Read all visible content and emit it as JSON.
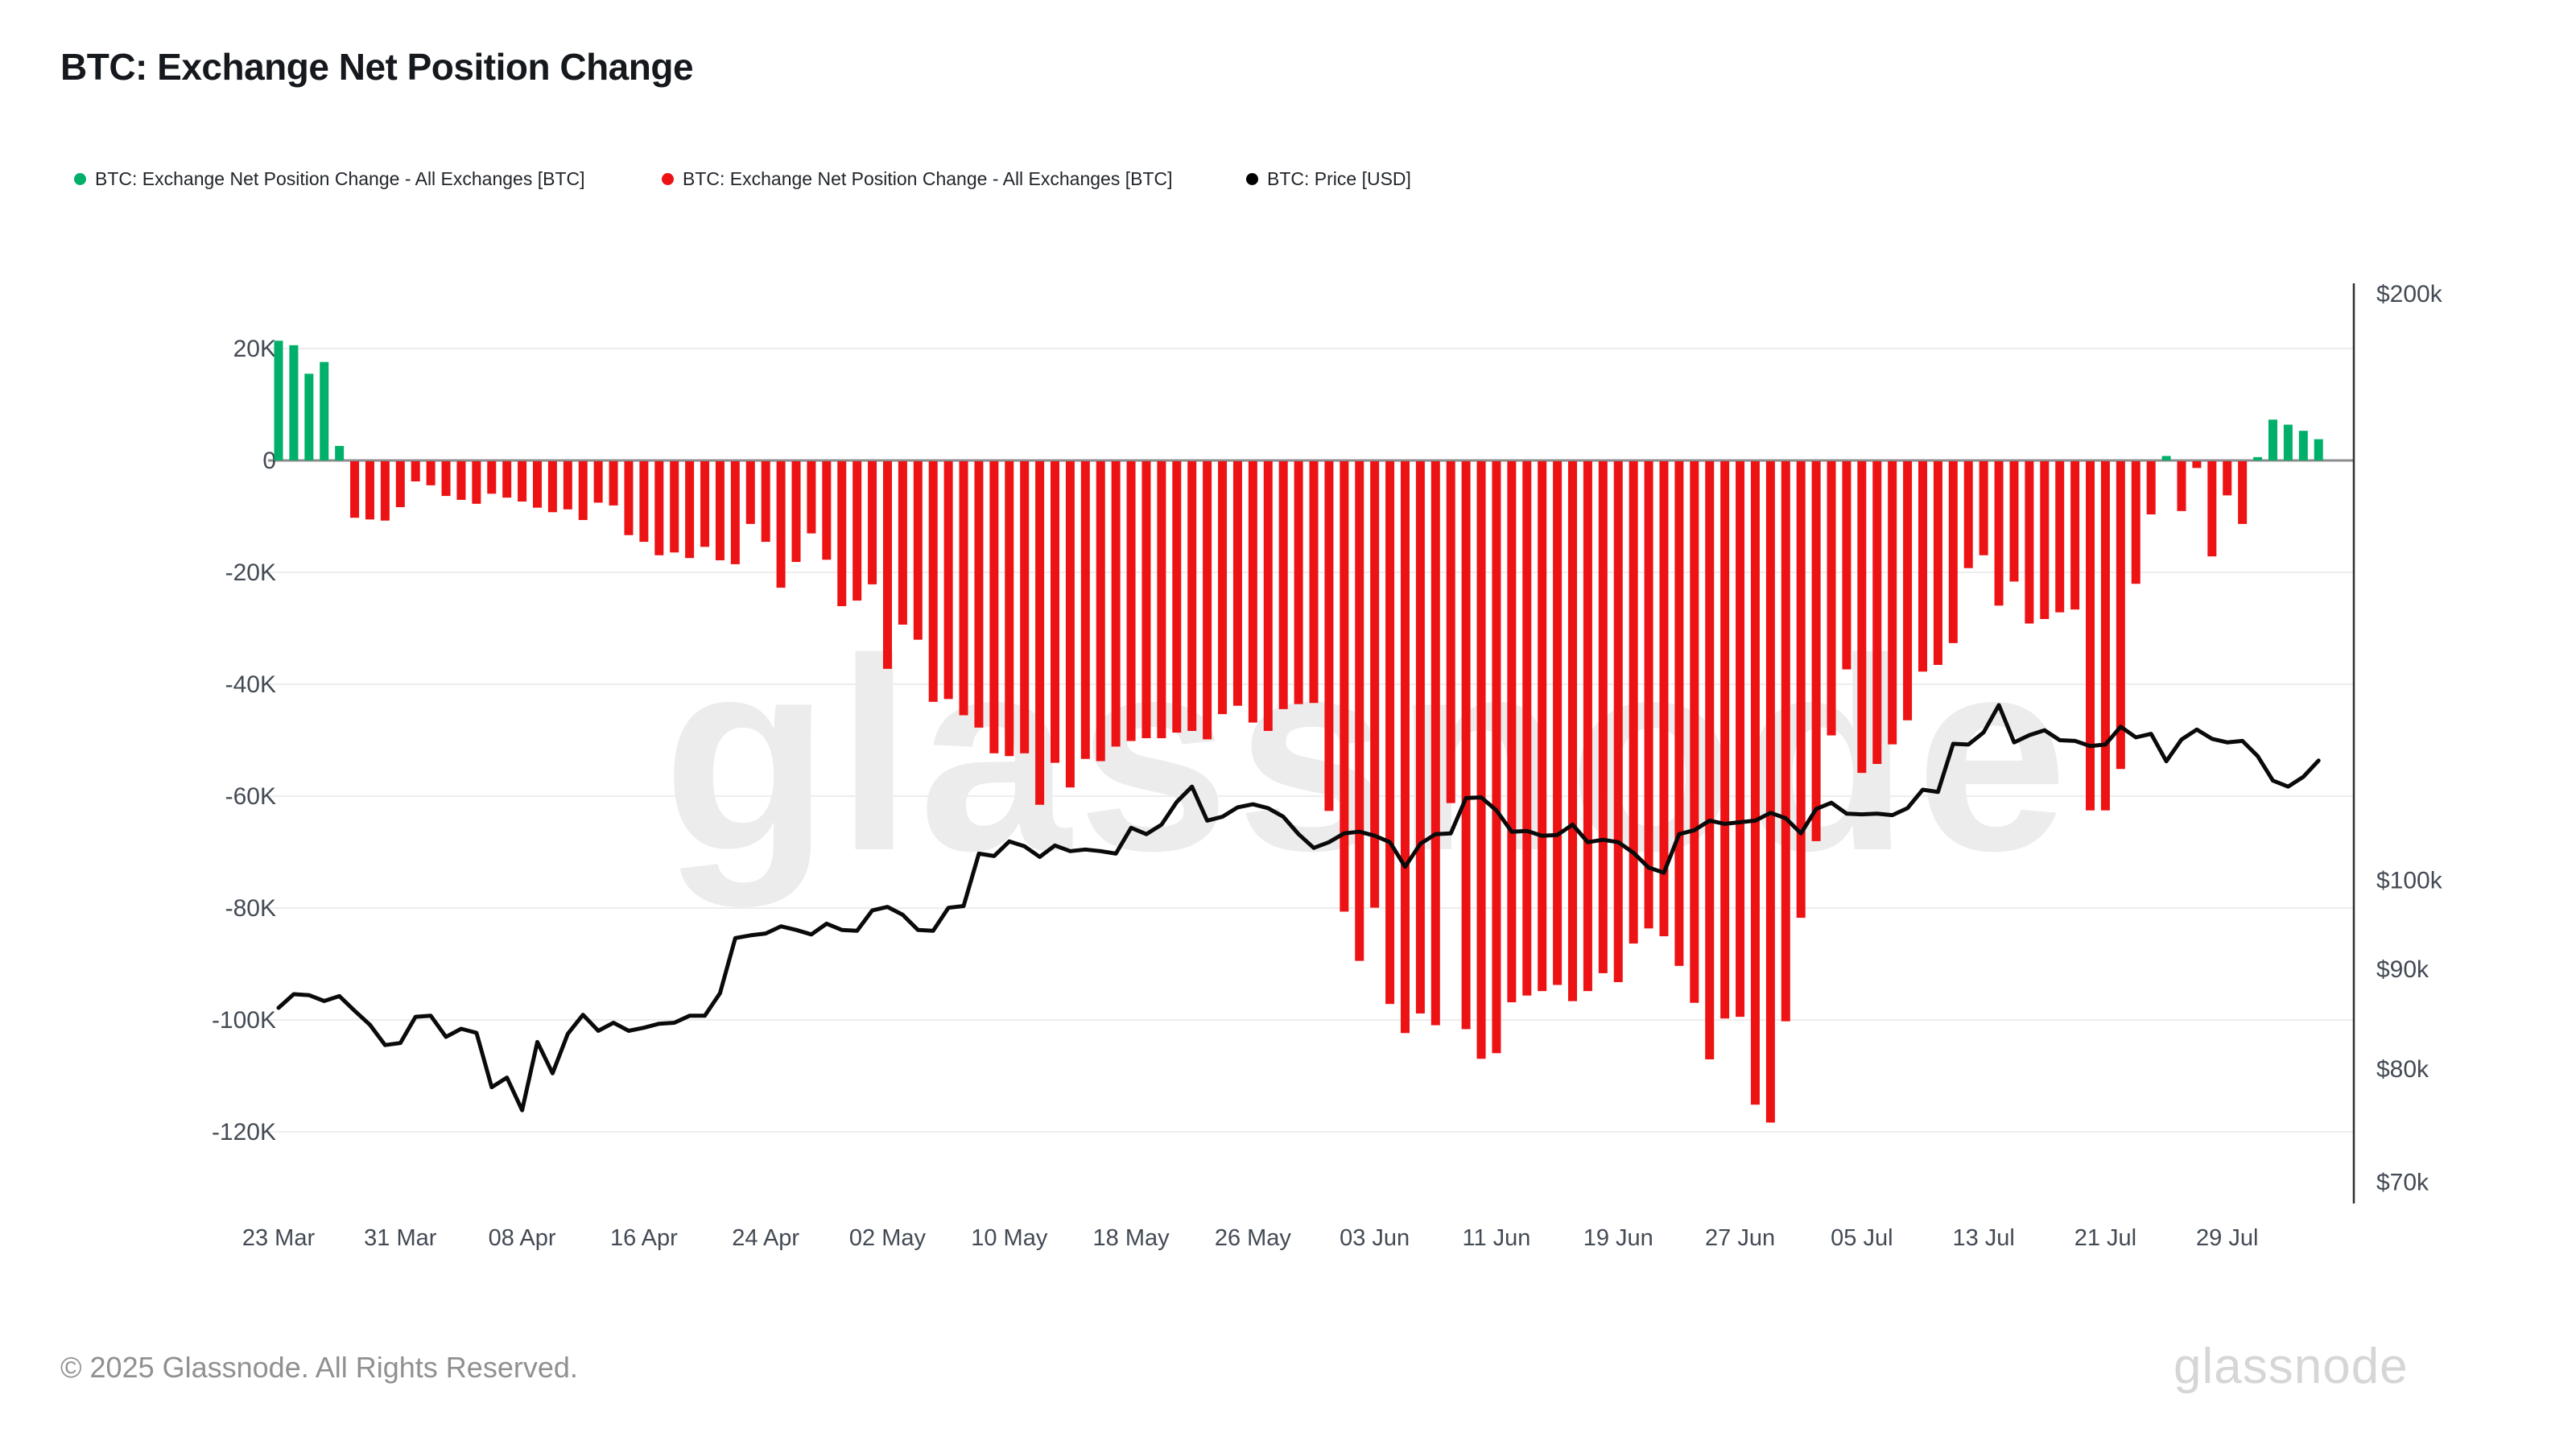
{
  "header": {
    "title": "BTC: Exchange Net Position Change"
  },
  "legend": [
    {
      "label": "BTC: Exchange Net Position Change - All Exchanges [BTC]",
      "color": "#00b06a"
    },
    {
      "label": "BTC: Exchange Net Position Change - All Exchanges [BTC]",
      "color": "#ed1214"
    },
    {
      "label": "BTC: Price [USD]",
      "color": "#000000"
    }
  ],
  "watermark": "glassnode",
  "footer": {
    "copyright": "© 2025 Glassnode. All Rights Reserved.",
    "brand": "glassnode"
  },
  "chart_data": {
    "type": "bar+line",
    "title": "BTC: Exchange Net Position Change",
    "grid": true,
    "left_axis": {
      "unit": "BTC (thousands)",
      "tick_labels": [
        "20K",
        "0",
        "-20K",
        "-40K",
        "-60K",
        "-80K",
        "-100K",
        "-120K"
      ],
      "tick_values": [
        20,
        0,
        -20,
        -40,
        -60,
        -80,
        -100,
        -120
      ]
    },
    "right_axis": {
      "unit": "USD",
      "scale": "log",
      "tick_labels": [
        "$200k",
        "$100k",
        "$90k",
        "$80k",
        "$70k"
      ],
      "tick_values_usd_thousands": [
        200,
        100,
        90,
        80,
        70
      ]
    },
    "x_ticks": {
      "labels": [
        "23 Mar",
        "31 Mar",
        "08 Apr",
        "16 Apr",
        "24 Apr",
        "02 May",
        "10 May",
        "18 May",
        "26 May",
        "03 Jun",
        "11 Jun",
        "19 Jun",
        "27 Jun",
        "05 Jul",
        "13 Jul",
        "21 Jul",
        "29 Jul"
      ],
      "day_indices": [
        0,
        8,
        16,
        24,
        32,
        40,
        48,
        56,
        64,
        72,
        80,
        88,
        96,
        104,
        112,
        120,
        128
      ]
    },
    "categories": [
      "23 Mar",
      "24 Mar",
      "25 Mar",
      "26 Mar",
      "27 Mar",
      "28 Mar",
      "29 Mar",
      "30 Mar",
      "31 Mar",
      "01 Apr",
      "02 Apr",
      "03 Apr",
      "04 Apr",
      "05 Apr",
      "06 Apr",
      "07 Apr",
      "08 Apr",
      "09 Apr",
      "10 Apr",
      "11 Apr",
      "12 Apr",
      "13 Apr",
      "14 Apr",
      "15 Apr",
      "16 Apr",
      "17 Apr",
      "18 Apr",
      "19 Apr",
      "20 Apr",
      "21 Apr",
      "22 Apr",
      "23 Apr",
      "24 Apr",
      "25 Apr",
      "26 Apr",
      "27 Apr",
      "28 Apr",
      "29 Apr",
      "30 Apr",
      "01 May",
      "02 May",
      "03 May",
      "04 May",
      "05 May",
      "06 May",
      "07 May",
      "08 May",
      "09 May",
      "10 May",
      "11 May",
      "12 May",
      "13 May",
      "14 May",
      "15 May",
      "16 May",
      "17 May",
      "18 May",
      "19 May",
      "20 May",
      "21 May",
      "22 May",
      "23 May",
      "24 May",
      "25 May",
      "26 May",
      "27 May",
      "28 May",
      "29 May",
      "30 May",
      "31 May",
      "01 Jun",
      "02 Jun",
      "03 Jun",
      "04 Jun",
      "05 Jun",
      "06 Jun",
      "07 Jun",
      "08 Jun",
      "09 Jun",
      "10 Jun",
      "11 Jun",
      "12 Jun",
      "13 Jun",
      "14 Jun",
      "15 Jun",
      "16 Jun",
      "17 Jun",
      "18 Jun",
      "19 Jun",
      "20 Jun",
      "21 Jun",
      "22 Jun",
      "23 Jun",
      "24 Jun",
      "25 Jun",
      "26 Jun",
      "27 Jun",
      "28 Jun",
      "29 Jun",
      "30 Jun",
      "01 Jul",
      "02 Jul",
      "03 Jul",
      "04 Jul",
      "05 Jul",
      "06 Jul",
      "07 Jul",
      "08 Jul",
      "09 Jul",
      "10 Jul",
      "11 Jul",
      "12 Jul",
      "13 Jul",
      "14 Jul",
      "15 Jul",
      "16 Jul",
      "17 Jul",
      "18 Jul",
      "19 Jul",
      "20 Jul",
      "21 Jul",
      "22 Jul",
      "23 Jul",
      "24 Jul",
      "25 Jul",
      "26 Jul",
      "27 Jul",
      "28 Jul",
      "29 Jul",
      "30 Jul",
      "31 Jul",
      "01 Aug",
      "02 Aug",
      "03 Aug",
      "04 Aug"
    ],
    "series": [
      {
        "name": "BTC: Exchange Net Position Change - All Exchanges [BTC]",
        "type": "bar",
        "unit": "BTC (thousands)",
        "values": [
          21.4,
          20.6,
          15.5,
          17.6,
          2.6,
          -10.1,
          -10.4,
          -10.6,
          -8.2,
          -3.6,
          -4.3,
          -6.2,
          -6.9,
          -7.6,
          -5.8,
          -6.5,
          -7.2,
          -8.3,
          -9.1,
          -8.6,
          -10.5,
          -7.4,
          -7.9,
          -13.2,
          -14.4,
          -16.8,
          -16.3,
          -17.3,
          -15.3,
          -17.7,
          -18.4,
          -11.2,
          -14.4,
          -22.6,
          -18.0,
          -12.9,
          -17.6,
          -25.9,
          -24.9,
          -22.0,
          -37.1,
          -29.2,
          -31.9,
          -43.0,
          -42.5,
          -45.4,
          -47.6,
          -52.2,
          -52.7,
          -52.2,
          -61.4,
          -53.9,
          -58.3,
          -53.2,
          -53.6,
          -51.0,
          -50.0,
          -49.5,
          -49.5,
          -48.5,
          -48.2,
          -49.7,
          -45.2,
          -43.7,
          -46.7,
          -48.2,
          -44.3,
          -43.4,
          -43.2,
          -62.5,
          -80.5,
          -89.3,
          -79.8,
          -97.0,
          -102.2,
          -98.7,
          -100.8,
          -61.1,
          -101.5,
          -106.8,
          -105.8,
          -96.7,
          -95.5,
          -94.7,
          -93.6,
          -96.5,
          -94.7,
          -91.5,
          -93.1,
          -86.2,
          -83.5,
          -84.9,
          -90.2,
          -96.8,
          -106.9,
          -99.6,
          -99.3,
          -115.0,
          -118.2,
          -100.1,
          -81.6,
          -67.9,
          -49.0,
          -37.2,
          -55.7,
          -54.1,
          -50.6,
          -46.3,
          -37.6,
          -36.4,
          -32.5,
          -19.1,
          -16.8,
          -25.8,
          -21.5,
          -29.0,
          -28.2,
          -27.0,
          -26.5,
          -62.4,
          -62.4,
          -55.0,
          -21.9,
          -9.5,
          0.8,
          -8.9,
          -1.2,
          -17.0,
          -6.1,
          -11.2,
          0.6,
          7.3,
          6.4,
          5.3,
          3.8
        ]
      },
      {
        "name": "BTC: Price [USD]",
        "type": "line",
        "unit": "USD (thousands)",
        "values": [
          86.0,
          87.4,
          87.3,
          86.7,
          87.2,
          85.7,
          84.3,
          82.3,
          82.5,
          85.1,
          85.2,
          83.1,
          83.9,
          83.5,
          78.3,
          79.2,
          76.2,
          82.6,
          79.6,
          83.4,
          85.3,
          83.7,
          84.5,
          83.7,
          84.0,
          84.4,
          84.5,
          85.2,
          85.2,
          87.5,
          93.4,
          93.7,
          93.9,
          94.7,
          94.3,
          93.8,
          95.0,
          94.3,
          94.2,
          96.5,
          96.9,
          96.0,
          94.3,
          94.2,
          96.8,
          97.0,
          103.2,
          102.9,
          104.7,
          104.1,
          102.8,
          104.2,
          103.5,
          103.7,
          103.5,
          103.2,
          106.4,
          105.6,
          106.8,
          109.7,
          111.7,
          107.3,
          107.8,
          109.0,
          109.4,
          108.9,
          107.8,
          105.6,
          103.9,
          104.6,
          105.7,
          105.9,
          105.4,
          104.6,
          101.6,
          104.4,
          105.6,
          105.7,
          110.2,
          110.3,
          108.6,
          105.9,
          106.0,
          105.4,
          105.5,
          106.8,
          104.6,
          104.9,
          104.6,
          103.3,
          101.5,
          100.9,
          105.6,
          106.1,
          107.3,
          106.9,
          107.1,
          107.3,
          108.3,
          107.6,
          105.7,
          108.8,
          109.6,
          108.2,
          108.1,
          108.2,
          108.0,
          108.9,
          111.3,
          111.0,
          117.5,
          117.4,
          119.1,
          123.0,
          117.7,
          118.7,
          119.4,
          118.0,
          117.9,
          117.2,
          117.4,
          119.9,
          118.4,
          118.9,
          115.1,
          118.1,
          119.5,
          118.2,
          117.7,
          117.9,
          115.8,
          112.5,
          111.7,
          113.0,
          115.2
        ]
      }
    ],
    "colors": {
      "positive_bar": "#00b06a",
      "negative_bar": "#ed1214",
      "price_line": "#0a0a0a",
      "gridline": "#ededed",
      "zero_line": "#8c8c8c",
      "right_axis_line": "#2f2f2f",
      "axis_text": "#434a54"
    }
  }
}
